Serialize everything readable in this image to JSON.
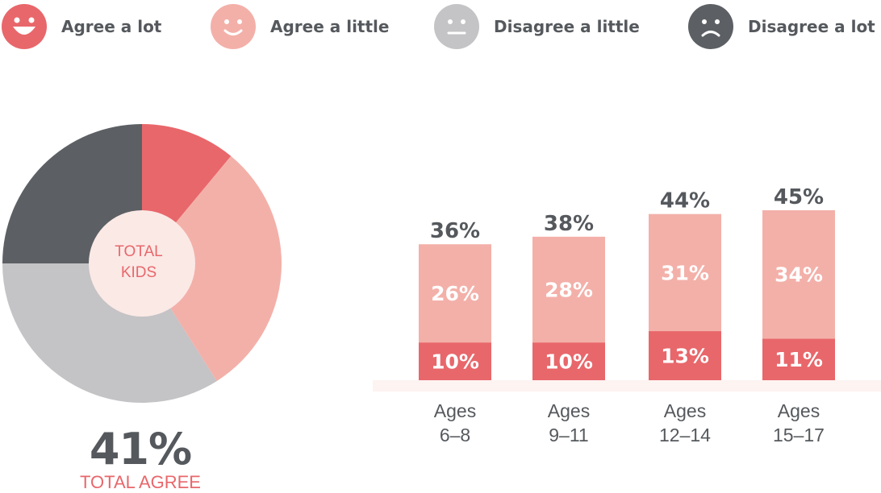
{
  "legend": {
    "items": [
      {
        "label": "Agree a lot",
        "color": "#e8676b",
        "face": "big-smile-icon"
      },
      {
        "label": "Agree a little",
        "color": "#f3b0a9",
        "face": "smile-icon"
      },
      {
        "label": "Disagree a little",
        "color": "#c4c3c6",
        "face": "neutral-face-icon"
      },
      {
        "label": "Disagree a lot",
        "color": "#5c6064",
        "face": "frown-icon"
      }
    ]
  },
  "pie": {
    "center_label_line1": "TOTAL",
    "center_label_line2": "KIDS",
    "total_value": "41%",
    "total_label": "TOTAL AGREE"
  },
  "chart_data": [
    {
      "type": "pie",
      "title": "",
      "slices": [
        {
          "name": "Agree a lot",
          "value": 11,
          "color": "#e8676b"
        },
        {
          "name": "Agree a little",
          "value": 30,
          "color": "#f3b0a9"
        },
        {
          "name": "Disagree a little",
          "value": 34,
          "color": "#c4c3c6"
        },
        {
          "name": "Disagree a lot",
          "value": 25,
          "color": "#5c6064"
        }
      ],
      "center_text": "TOTAL KIDS",
      "total_agree": "41%"
    },
    {
      "type": "bar",
      "stacked": true,
      "categories": [
        "Ages 6–8",
        "Ages 9–11",
        "Ages 12–14",
        "Ages 15–17"
      ],
      "category_lines": [
        [
          "Ages",
          "6–8"
        ],
        [
          "Ages",
          "9–11"
        ],
        [
          "Ages",
          "12–14"
        ],
        [
          "Ages",
          "15–17"
        ]
      ],
      "series": [
        {
          "name": "Agree a lot",
          "values": [
            10,
            10,
            13,
            11
          ],
          "color": "#e8676b",
          "labels": [
            "10%",
            "10%",
            "13%",
            "11%"
          ]
        },
        {
          "name": "Agree a little",
          "values": [
            26,
            28,
            31,
            34
          ],
          "color": "#f3b0a9",
          "labels": [
            "26%",
            "28%",
            "31%",
            "34%"
          ]
        }
      ],
      "totals": [
        36,
        38,
        44,
        45
      ],
      "total_labels": [
        "36%",
        "38%",
        "44%",
        "45%"
      ],
      "ylim": [
        0,
        45
      ],
      "grid": false,
      "xlabel": "",
      "ylabel": ""
    }
  ]
}
